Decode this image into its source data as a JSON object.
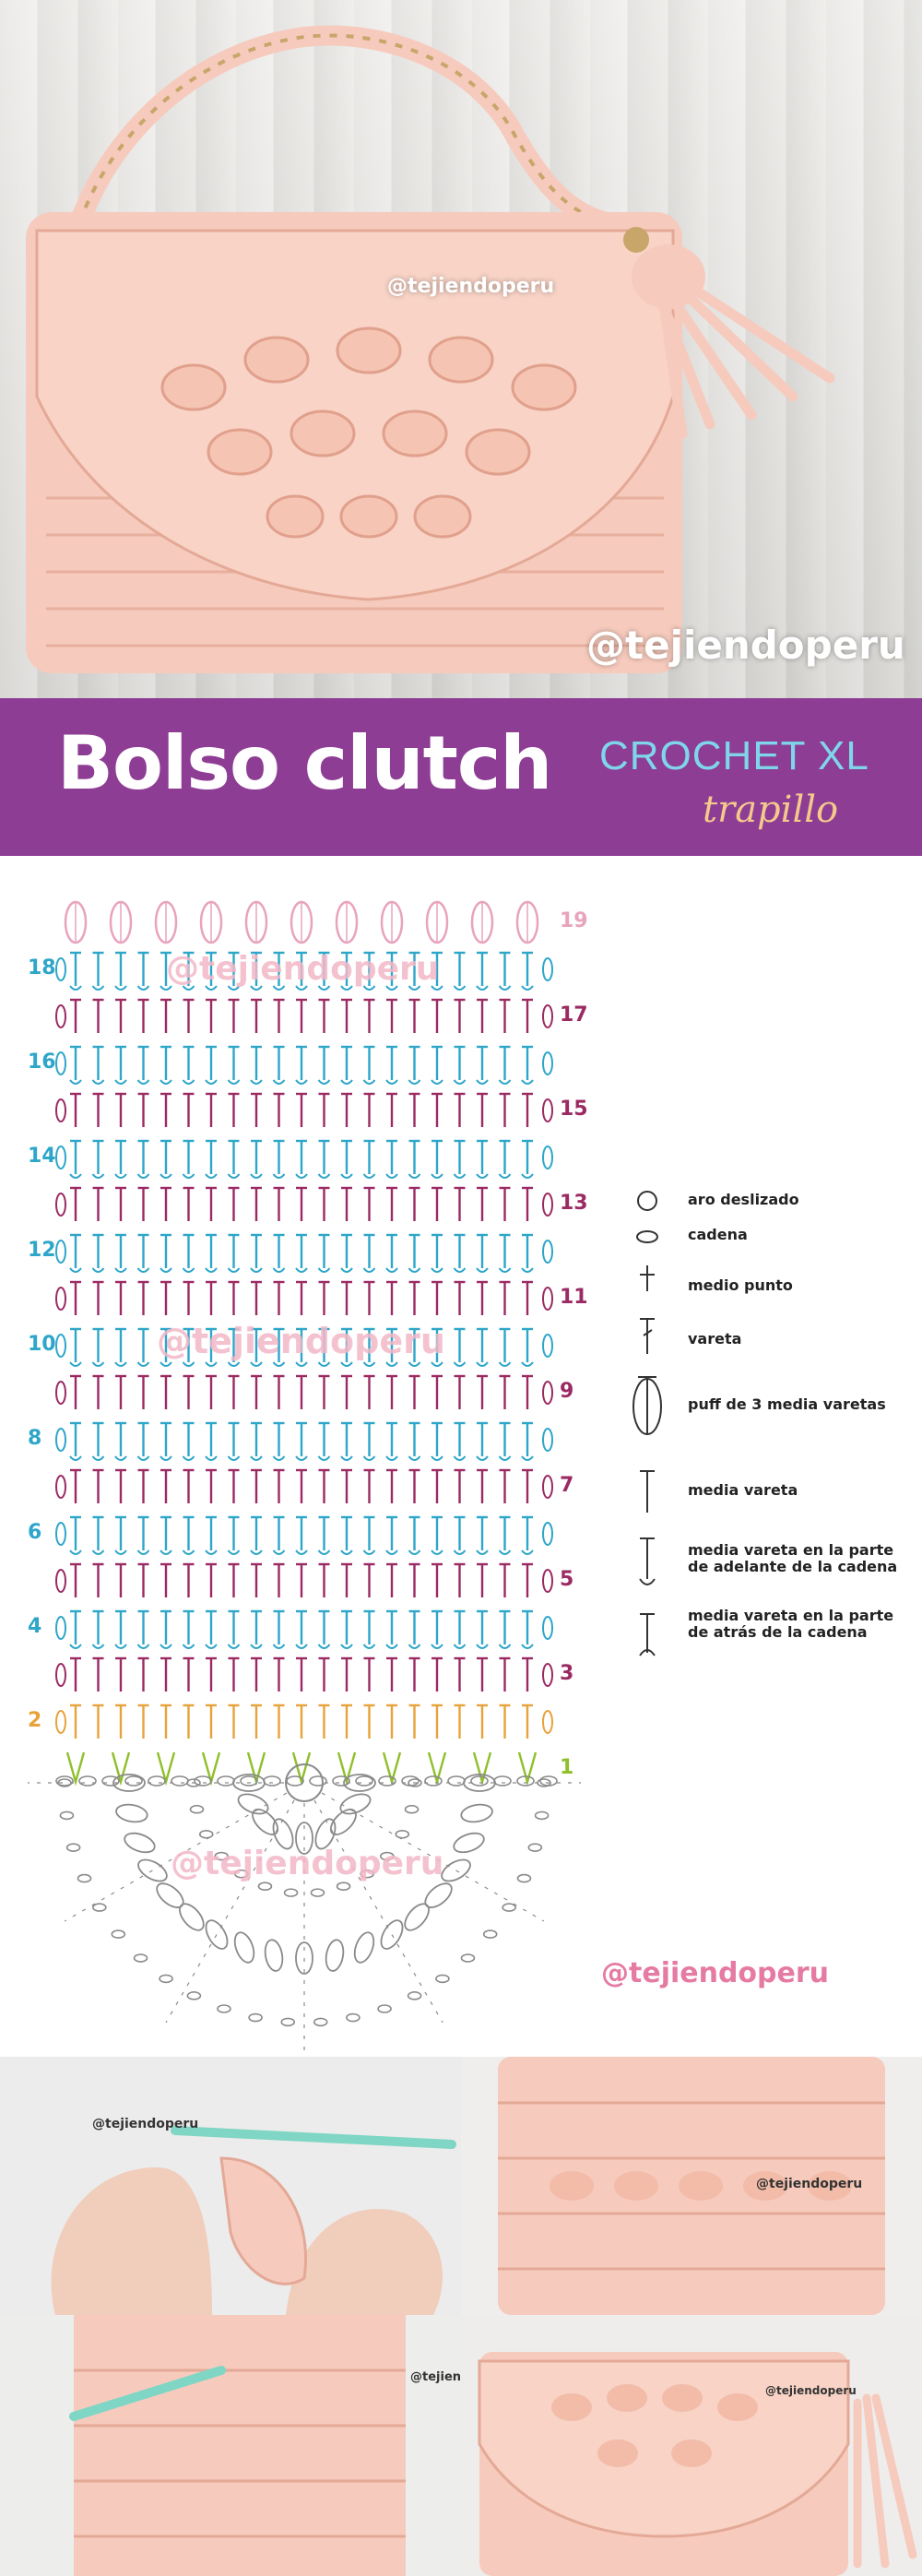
{
  "hero": {
    "watermark_small": "@tejiendoperu",
    "watermark_large": "@tejiendoperu",
    "colors": {
      "yarn": "#f6cbbd",
      "yarn_shadow": "#e4a996",
      "wood": "#e6e5e2",
      "chain": "#c8a66a"
    }
  },
  "banner": {
    "title": "Bolso clutch",
    "subtitle": "CROCHET XL",
    "material": "trapillo",
    "colors": {
      "background": "#8e3d94",
      "subtitle": "#7fd6ea",
      "material": "#f4c98c"
    }
  },
  "diagram": {
    "left_row_numbers": [
      "18",
      "16",
      "14",
      "12",
      "10",
      "8",
      "6",
      "4",
      "2"
    ],
    "right_row_numbers": [
      "19",
      "17",
      "15",
      "13",
      "11",
      "9",
      "7",
      "5",
      "3",
      "1"
    ],
    "watermarks": [
      "@tejiendoperu",
      "@tejiendoperu",
      "@tejiendoperu"
    ],
    "footer_watermark": "@tejiendoperu",
    "colors": {
      "even_rows": "#2ea6c9",
      "odd_rows": "#9b2a63",
      "row_2": "#e8a23a",
      "row_1": "#8fbf2a",
      "row_19": "#e8a3bd",
      "base": "#8a8a8a",
      "left_numbers": "#2ea6c9",
      "right_numbers": "#9b2a63"
    }
  },
  "legend": {
    "items": [
      {
        "icon": "magic-ring-icon",
        "label": "aro deslizado"
      },
      {
        "icon": "chain-stitch-icon",
        "label": "cadena"
      },
      {
        "icon": "single-crochet-icon",
        "label": "medio punto"
      },
      {
        "icon": "double-crochet-icon",
        "label": "vareta"
      },
      {
        "icon": "puff-stitch-icon",
        "label": "puff de 3 media varetas"
      },
      {
        "icon": "half-double-crochet-icon",
        "label": "media vareta"
      },
      {
        "icon": "front-loop-hdc-icon",
        "label": "media vareta en la parte de adelante de la cadena"
      },
      {
        "icon": "back-loop-hdc-icon",
        "label": "media vareta en la parte de atrás de la cadena"
      }
    ]
  },
  "photos": {
    "watermarks": [
      "@tejiendoperu",
      "@tejiendoperu",
      "@tejiendoperu",
      "@tejiendoperu"
    ]
  }
}
